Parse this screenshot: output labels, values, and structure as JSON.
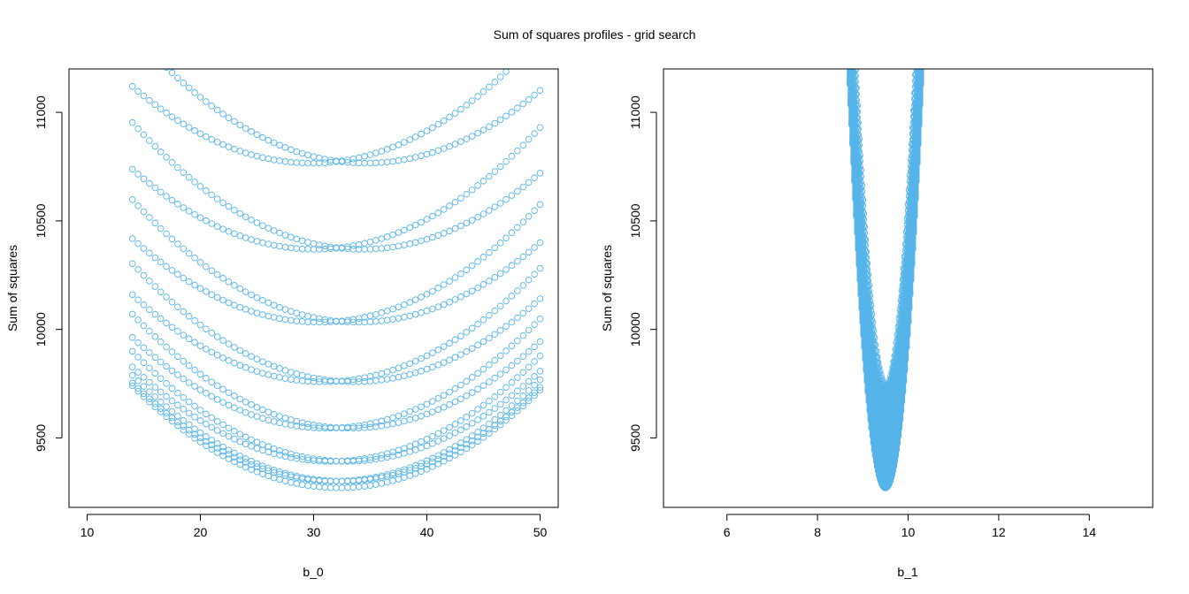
{
  "figure": {
    "title": "Sum of squares profiles - grid search"
  },
  "colors": {
    "points": "#56B4E9",
    "axis": "#000000",
    "background": "#ffffff"
  },
  "chart_data": [
    {
      "type": "scatter",
      "title": "",
      "xlabel": "b_0",
      "ylabel": "Sum of squares",
      "xlim": [
        8.4,
        51.6
      ],
      "ylim": [
        9180,
        11200
      ],
      "xticks": [
        10,
        20,
        30,
        40,
        50
      ],
      "yticks": [
        9500,
        10000,
        10500,
        11000
      ],
      "xtick_labels": [
        "10",
        "20",
        "30",
        "40",
        "50"
      ],
      "ytick_labels": [
        "9500",
        "10000",
        "10500",
        "11000"
      ],
      "marker": "open-circle",
      "grid": false,
      "legend": "none",
      "profile": {
        "parameter_grid": {
          "from": 14,
          "to": 50,
          "step": 0.5
        },
        "other_grid": {
          "from": 8.4,
          "to": 10.6,
          "step": 0.1
        },
        "minimum": {
          "b_0": 32.2,
          "b_1": 9.5,
          "sum_of_squares": 9270
        }
      }
    },
    {
      "type": "scatter",
      "title": "",
      "xlabel": "b_1",
      "ylabel": "Sum of squares",
      "xlim": [
        4.6,
        15.4
      ],
      "ylim": [
        9180,
        11200
      ],
      "xticks": [
        6,
        8,
        10,
        12,
        14
      ],
      "yticks": [
        9500,
        10000,
        10500,
        11000
      ],
      "xtick_labels": [
        "6",
        "8",
        "10",
        "12",
        "14"
      ],
      "ytick_labels": [
        "9500",
        "10000",
        "10500",
        "11000"
      ],
      "marker": "open-circle",
      "grid": false,
      "legend": "none",
      "profile": {
        "parameter_grid": {
          "from": 8.4,
          "to": 10.6,
          "step": 0.02
        },
        "other_grid": {
          "from": 14,
          "to": 50,
          "step": 0.5
        },
        "minimum": {
          "b_0": 32.2,
          "b_1": 9.5,
          "sum_of_squares": 9270
        }
      }
    }
  ]
}
